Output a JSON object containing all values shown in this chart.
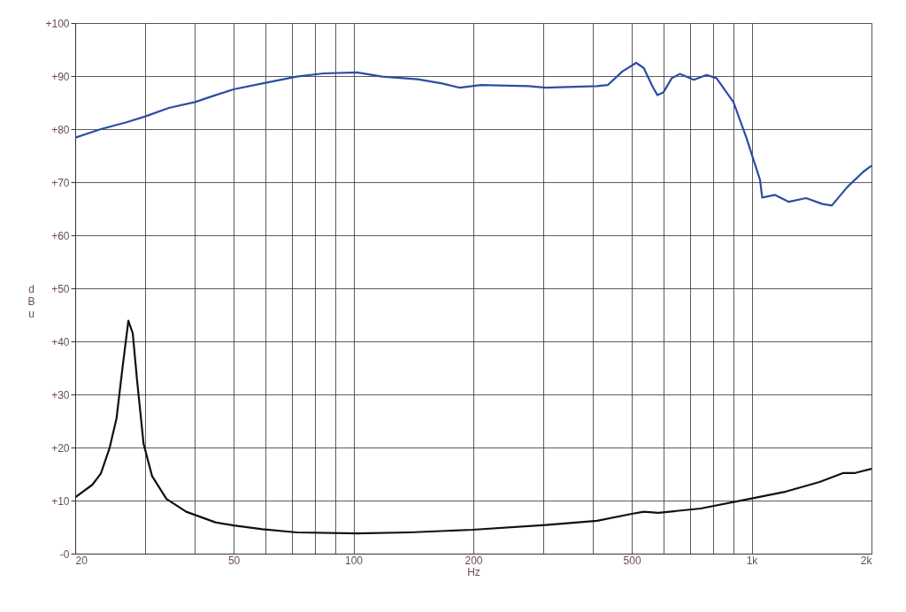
{
  "chart_data": {
    "type": "line",
    "xlabel": "Hz",
    "ylabel": "dBu",
    "xlim": [
      20,
      2000
    ],
    "ylim": [
      0,
      100
    ],
    "log": "x",
    "grid": true,
    "marker": "none",
    "line_style": "solid",
    "xticks": [
      20,
      {
        "value": 30,
        "label": null
      },
      {
        "value": 40,
        "label": null
      },
      50,
      {
        "value": 60,
        "label": null
      },
      {
        "value": 70,
        "label": null
      },
      {
        "value": 80,
        "label": null
      },
      {
        "value": 90,
        "label": null
      },
      100,
      200,
      {
        "value": 300,
        "label": null
      },
      {
        "value": 400,
        "label": null
      },
      500,
      {
        "value": 600,
        "label": null
      },
      {
        "value": 700,
        "label": null
      },
      {
        "value": 800,
        "label": null
      },
      {
        "value": 900,
        "label": null
      },
      {
        "value": 1000,
        "label": "1k"
      },
      {
        "value": 2000,
        "label": "2k"
      }
    ],
    "yticks": [
      {
        "value": 0,
        "label": "-0"
      },
      {
        "value": 10,
        "label": "+10"
      },
      {
        "value": 20,
        "label": "+20"
      },
      {
        "value": 30,
        "label": "+30"
      },
      {
        "value": 40,
        "label": "+40"
      },
      {
        "value": 50,
        "label": "+50"
      },
      {
        "value": 60,
        "label": "+60"
      },
      {
        "value": 70,
        "label": "+70"
      },
      {
        "value": 80,
        "label": "+80"
      },
      {
        "value": 90,
        "label": "+90"
      },
      {
        "value": 100,
        "label": "+100"
      }
    ],
    "series": [
      {
        "color": "#2b4ea2",
        "x": [
          20,
          23.2,
          26.9,
          30,
          34.4,
          40,
          45,
          50,
          59,
          72,
          84,
          102,
          118,
          145,
          167,
          185,
          209,
          275,
          304,
          409,
          435,
          474,
          513,
          536,
          564,
          580,
          600,
          630,
          660,
          716,
          770,
          816,
          900,
          970,
          1050,
          1063,
          1145,
          1240,
          1370,
          1505,
          1590,
          1740,
          1910,
          2000
        ],
        "values": [
          78.4,
          80.0,
          81.3,
          82.4,
          84.0,
          85.1,
          86.4,
          87.5,
          88.6,
          89.9,
          90.5,
          90.7,
          89.9,
          89.4,
          88.6,
          87.8,
          88.3,
          88.1,
          87.8,
          88.1,
          88.3,
          90.9,
          92.5,
          91.5,
          88.0,
          86.4,
          86.9,
          89.6,
          90.4,
          89.3,
          90.2,
          89.6,
          85.1,
          78.4,
          70.4,
          67.1,
          67.6,
          66.3,
          67.0,
          65.9,
          65.6,
          69.1,
          72.0,
          73.1
        ]
      },
      {
        "color": "#111111",
        "x": [
          20,
          22.1,
          23.2,
          24.4,
          25.4,
          26.3,
          27.2,
          27.9,
          28.6,
          29.7,
          31.2,
          33.9,
          38,
          45,
          50,
          59,
          72,
          102,
          138,
          199,
          304,
          409,
          500,
          536,
          583,
          744,
          1000,
          1220,
          1481,
          1700,
          1820,
          2000
        ],
        "values": [
          10.6,
          13.0,
          15.1,
          19.9,
          25.5,
          35.1,
          43.9,
          41.5,
          32.7,
          20.7,
          14.6,
          10.3,
          7.9,
          5.9,
          5.3,
          4.6,
          4.0,
          3.8,
          4.0,
          4.5,
          5.4,
          6.2,
          7.5,
          7.9,
          7.7,
          8.5,
          10.4,
          11.7,
          13.5,
          15.2,
          15.2,
          16.0
        ]
      }
    ]
  }
}
